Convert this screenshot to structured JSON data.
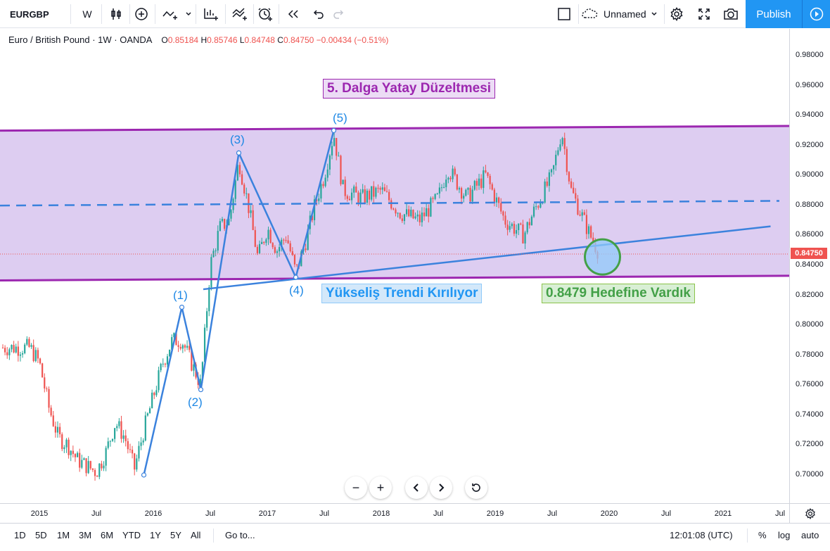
{
  "toolbar": {
    "symbol": "EURGBP",
    "interval": "W",
    "layout_name": "Unnamed",
    "publish_label": "Publish",
    "icons": [
      "bar-style-icon",
      "indicator-add-icon",
      "compare-icon",
      "indicators-icon",
      "templates-icon",
      "alert-icon",
      "replay-icon",
      "undo-icon",
      "redo-icon",
      "fullscreen-square-icon",
      "cloud-icon",
      "gear-icon",
      "fullscreen-icon",
      "camera-icon",
      "play-icon"
    ]
  },
  "legend": {
    "title": "Euro / British Pound · 1W · OANDA",
    "o_label": "O",
    "o_value": "0.85184",
    "h_label": "H",
    "h_value": "0.85746",
    "l_label": "L",
    "l_value": "0.84748",
    "c_label": "C",
    "c_value": "0.84750",
    "change": "−0.00434 (−0.51%)"
  },
  "annotations": {
    "main_title": "5. Dalga Yatay Düzeltmesi",
    "trend_broken": "Yükseliş Trendi Kırılıyor",
    "target_reached": "0.8479 Hedefine Vardık",
    "waves": [
      "(1)",
      "(2)",
      "(3)",
      "(4)",
      "(5)"
    ]
  },
  "price_axis": {
    "ticks": [
      "0.98000",
      "0.96000",
      "0.94000",
      "0.92000",
      "0.90000",
      "0.88000",
      "0.86000",
      "0.84000",
      "0.82000",
      "0.80000",
      "0.78000",
      "0.76000",
      "0.74000",
      "0.72000",
      "0.70000"
    ],
    "last_price": "0.84750"
  },
  "time_axis": {
    "ticks": [
      "2015",
      "Jul",
      "2016",
      "Jul",
      "2017",
      "Jul",
      "2018",
      "Jul",
      "2019",
      "Jul",
      "2020",
      "Jul",
      "2021",
      "Jul"
    ]
  },
  "bottom_bar": {
    "ranges": [
      "1D",
      "5D",
      "1M",
      "3M",
      "6M",
      "YTD",
      "1Y",
      "5Y",
      "All"
    ],
    "goto": "Go to...",
    "time": "12:01:08 (UTC)",
    "percent": "%",
    "log": "log",
    "auto": "auto"
  },
  "colors": {
    "up": "#26a69a",
    "down": "#ef5350",
    "channel": "#9c27b0",
    "channel_fill": "#d9c8ef",
    "wave_line": "#3b82dd",
    "target_circle": "#43a047",
    "publish": "#2196f3"
  },
  "chart_data": {
    "type": "candlestick",
    "symbol": "EURGBP",
    "timeframe": "1W",
    "ylim": [
      0.69,
      0.99
    ],
    "price_path": [
      [
        "2014-12",
        0.785
      ],
      [
        "2015-01",
        0.775
      ],
      [
        "2015-02",
        0.745
      ],
      [
        "2015-03",
        0.725
      ],
      [
        "2015-04",
        0.72
      ],
      [
        "2015-05",
        0.71
      ],
      [
        "2015-07",
        0.702
      ],
      [
        "2015-08",
        0.715
      ],
      [
        "2015-09",
        0.735
      ],
      [
        "2015-10",
        0.725
      ],
      [
        "2015-11",
        0.704
      ],
      [
        "2015-12",
        0.73
      ],
      [
        "2016-02",
        0.775
      ],
      [
        "2016-03",
        0.79
      ],
      [
        "2016-04",
        0.79
      ],
      [
        "2016-05",
        0.775
      ],
      [
        "2016-06",
        0.76
      ],
      [
        "2016-07",
        0.84
      ],
      [
        "2016-08",
        0.865
      ],
      [
        "2016-09",
        0.87
      ],
      [
        "2016-10",
        0.91
      ],
      [
        "2016-11",
        0.88
      ],
      [
        "2016-12",
        0.845
      ],
      [
        "2017-01",
        0.865
      ],
      [
        "2017-02",
        0.85
      ],
      [
        "2017-03",
        0.86
      ],
      [
        "2017-04",
        0.835
      ],
      [
        "2017-05",
        0.855
      ],
      [
        "2017-06",
        0.88
      ],
      [
        "2017-07",
        0.9
      ],
      [
        "2017-08",
        0.928
      ],
      [
        "2017-09",
        0.89
      ],
      [
        "2017-11",
        0.885
      ],
      [
        "2018-01",
        0.89
      ],
      [
        "2018-03",
        0.875
      ],
      [
        "2018-05",
        0.87
      ],
      [
        "2018-07",
        0.885
      ],
      [
        "2018-08",
        0.905
      ],
      [
        "2018-10",
        0.885
      ],
      [
        "2018-12",
        0.9
      ],
      [
        "2019-02",
        0.87
      ],
      [
        "2019-04",
        0.86
      ],
      [
        "2019-05",
        0.875
      ],
      [
        "2019-07",
        0.9
      ],
      [
        "2019-08",
        0.93
      ],
      [
        "2019-09",
        0.89
      ],
      [
        "2019-11",
        0.86
      ],
      [
        "2019-12",
        0.8475
      ]
    ],
    "channel_upper": [
      [
        "2014-12",
        0.93
      ],
      [
        "2021-08",
        0.933
      ]
    ],
    "channel_lower": [
      [
        "2014-12",
        0.83
      ],
      [
        "2021-08",
        0.833
      ]
    ],
    "channel_mid_dashed": [
      [
        "2014-12",
        0.88
      ],
      [
        "2021-08",
        0.883
      ]
    ],
    "trendline": [
      [
        "2016-07",
        0.824
      ],
      [
        "2021-06",
        0.866
      ]
    ],
    "wave_points": [
      {
        "label": "(1)",
        "date": "2016-04",
        "price": 0.812
      },
      {
        "label": "(2)",
        "date": "2016-06",
        "price": 0.757
      },
      {
        "label": "(3)",
        "date": "2016-10",
        "price": 0.915
      },
      {
        "label": "(4)",
        "date": "2017-04",
        "price": 0.832
      },
      {
        "label": "(5)",
        "date": "2017-08",
        "price": 0.93
      }
    ],
    "wave_start": {
      "date": "2015-12",
      "price": 0.7
    },
    "target_circle": {
      "date": "2019-12",
      "price": 0.8479
    }
  }
}
